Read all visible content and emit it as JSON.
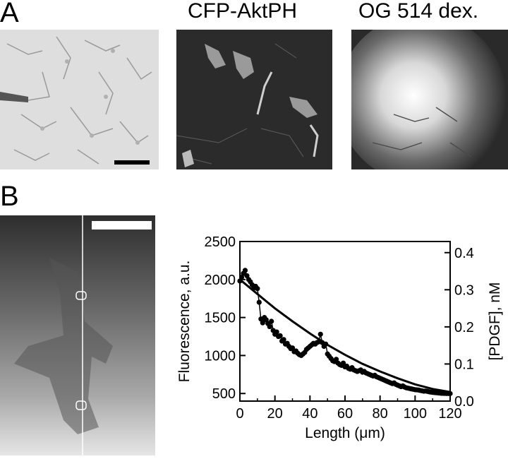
{
  "figure": {
    "panel_a": {
      "label": "A",
      "titles": [
        "",
        "CFP-AktPH",
        "OG 514 dex."
      ]
    },
    "panel_b": {
      "label": "B"
    }
  },
  "chart_data": {
    "type": "line",
    "xlabel": "Length (μm)",
    "ylabel": "Fluorescence, a.u.",
    "y2label": "[PDGF], nM",
    "xlim": [
      0,
      120
    ],
    "ylim": [
      400,
      2500
    ],
    "y2lim": [
      0,
      0.43
    ],
    "xticks": [
      0,
      20,
      40,
      60,
      80,
      100,
      120
    ],
    "yticks": [
      500,
      1000,
      1500,
      2000,
      2500
    ],
    "y2ticks": [
      0.0,
      0.1,
      0.2,
      0.3,
      0.4
    ],
    "grid": false,
    "series": [
      {
        "kind": "measured",
        "marker": "circle",
        "x": [
          0,
          1,
          2,
          3,
          4,
          5,
          6,
          7,
          8,
          9,
          10,
          11,
          12,
          13,
          14,
          15,
          16,
          17,
          18,
          19,
          20,
          21,
          22,
          23,
          24,
          25,
          26,
          27,
          28,
          29,
          30,
          31,
          32,
          33,
          34,
          35,
          36,
          37,
          38,
          39,
          40,
          41,
          42,
          43,
          44,
          45,
          46,
          47,
          48,
          49,
          50,
          51,
          52,
          53,
          54,
          55,
          56,
          57,
          58,
          59,
          60,
          61,
          62,
          63,
          64,
          65,
          66,
          67,
          68,
          69,
          70,
          71,
          72,
          73,
          74,
          75,
          76,
          77,
          78,
          79,
          80,
          81,
          82,
          83,
          84,
          85,
          86,
          87,
          88,
          89,
          90,
          91,
          92,
          93,
          94,
          95,
          96,
          97,
          98,
          99,
          100,
          101,
          102,
          103,
          104,
          105,
          106,
          107,
          108,
          109,
          110,
          111,
          112,
          113,
          114,
          115,
          116,
          117,
          118,
          119,
          120
        ],
        "y": [
          1980,
          2030,
          2080,
          2120,
          2050,
          2000,
          1970,
          1930,
          1890,
          1910,
          1880,
          1700,
          1480,
          1430,
          1500,
          1470,
          1420,
          1380,
          1450,
          1330,
          1280,
          1310,
          1250,
          1260,
          1190,
          1210,
          1150,
          1160,
          1120,
          1090,
          1100,
          1050,
          1060,
          1030,
          1010,
          1000,
          1020,
          1040,
          1080,
          1100,
          1120,
          1140,
          1160,
          1150,
          1170,
          1180,
          1280,
          1170,
          1120,
          1150,
          1020,
          990,
          960,
          930,
          920,
          950,
          900,
          880,
          870,
          900,
          850,
          860,
          830,
          820,
          840,
          810,
          800,
          790,
          800,
          810,
          780,
          790,
          770,
          760,
          750,
          740,
          730,
          740,
          720,
          710,
          700,
          690,
          680,
          670,
          660,
          650,
          640,
          630,
          640,
          620,
          610,
          600,
          590,
          600,
          585,
          575,
          570,
          565,
          560,
          555,
          550,
          548,
          545,
          540,
          535,
          530,
          532,
          528,
          522,
          518,
          515,
          512,
          510,
          508,
          505,
          503,
          502,
          501,
          500,
          500,
          499
        ]
      },
      {
        "kind": "fit",
        "marker": "none",
        "x": [
          0,
          10,
          20,
          30,
          40,
          50,
          60,
          70,
          80,
          90,
          100,
          110,
          120
        ],
        "y": [
          2000,
          1810,
          1620,
          1450,
          1290,
          1140,
          1010,
          890,
          790,
          700,
          620,
          560,
          520
        ]
      }
    ]
  }
}
